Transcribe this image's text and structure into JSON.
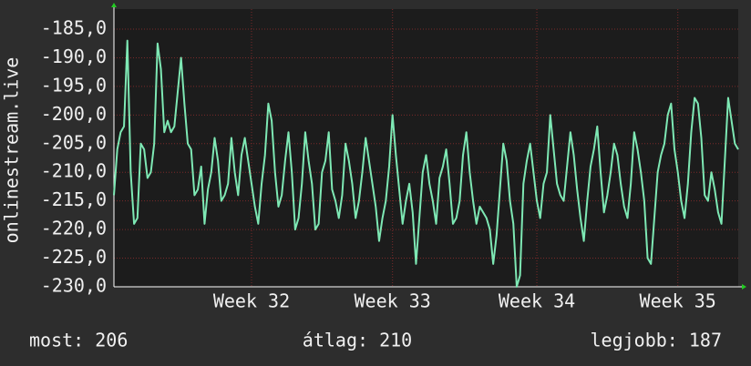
{
  "chart_data": {
    "type": "line",
    "y_label": "onlinestream.live",
    "series": [
      {
        "name": "onlinestream.live",
        "color": "#7ee8b4",
        "values": [
          -214,
          -206,
          -203,
          -202,
          -187,
          -210,
          -219,
          -218,
          -205,
          -206,
          -211,
          -210,
          -205,
          -187.5,
          -192,
          -203,
          -201,
          -203,
          -202,
          -196,
          -190,
          -198,
          -205,
          -206,
          -214,
          -213,
          -209,
          -219,
          -213,
          -210,
          -204,
          -208,
          -215,
          -214,
          -212,
          -204,
          -210,
          -214,
          -207,
          -204,
          -208,
          -212,
          -216,
          -219,
          -212,
          -207,
          -198,
          -201,
          -210,
          -216,
          -214,
          -208,
          -203,
          -210,
          -220,
          -218,
          -212,
          -203,
          -208,
          -212,
          -220,
          -219,
          -210,
          -208,
          -203,
          -213,
          -215,
          -218,
          -214,
          -205,
          -208,
          -212,
          -218,
          -215,
          -210,
          -204,
          -208,
          -212,
          -216,
          -222,
          -218,
          -215,
          -209,
          -200,
          -207,
          -213,
          -219,
          -215,
          -212,
          -217,
          -226,
          -218,
          -210,
          -207,
          -212,
          -215,
          -219,
          -211,
          -209,
          -206,
          -212,
          -219,
          -218,
          -215,
          -207,
          -203,
          -210,
          -215,
          -219,
          -216,
          -217,
          -218,
          -220,
          -226,
          -221,
          -213,
          -205,
          -208,
          -215,
          -219,
          -230,
          -228,
          -212,
          -208,
          -205,
          -210,
          -215,
          -218,
          -212,
          -210,
          -200,
          -206,
          -212,
          -214,
          -215,
          -209,
          -203,
          -207,
          -213,
          -218,
          -222,
          -215,
          -209,
          -206,
          -202,
          -210,
          -217,
          -214,
          -210,
          -205,
          -207,
          -212,
          -216,
          -218,
          -212,
          -203,
          -206,
          -210,
          -215,
          -225,
          -226,
          -218,
          -210,
          -207,
          -205,
          -200,
          -198,
          -206,
          -210,
          -215,
          -218,
          -212,
          -203,
          -197,
          -198,
          -204,
          -214,
          -215,
          -210,
          -213,
          -217,
          -219,
          -208,
          -197,
          -201,
          -205,
          -206
        ]
      }
    ],
    "xlim": [
      0,
      186
    ],
    "xticks": [
      {
        "value": 41,
        "label": "Week 32"
      },
      {
        "value": 83,
        "label": "Week 33"
      },
      {
        "value": 126,
        "label": "Week 34"
      },
      {
        "value": 168,
        "label": "Week 35"
      }
    ],
    "ylim": [
      -230,
      -181.5
    ],
    "yticks": [
      {
        "value": -230,
        "label": "-230,0"
      },
      {
        "value": -225,
        "label": "-225,0"
      },
      {
        "value": -220,
        "label": "-220,0"
      },
      {
        "value": -215,
        "label": "-215,0"
      },
      {
        "value": -210,
        "label": "-210,0"
      },
      {
        "value": -205,
        "label": "-205,0"
      },
      {
        "value": -200,
        "label": "-200,0"
      },
      {
        "value": -195,
        "label": "-195,0"
      },
      {
        "value": -190,
        "label": "-190,0"
      },
      {
        "value": -185,
        "label": "-185,0"
      }
    ],
    "grid": true,
    "footer": [
      "most: 206",
      "átlag: 210",
      "legjobb: 187"
    ]
  }
}
